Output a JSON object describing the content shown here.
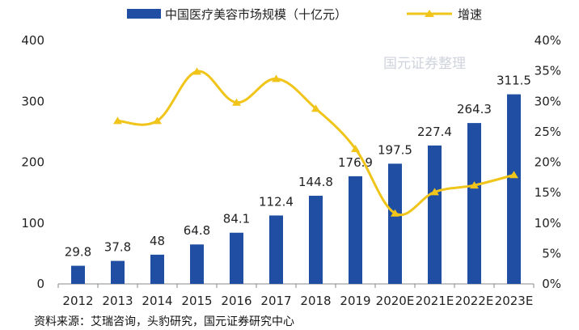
{
  "chart_data": {
    "type": "bar",
    "categories": [
      "2012",
      "2013",
      "2014",
      "2015",
      "2016",
      "2017",
      "2018",
      "2019",
      "2020E",
      "2021E",
      "2022E",
      "2023E"
    ],
    "series": [
      {
        "name": "中国医疗美容市场规模（十亿元）",
        "type": "bar",
        "axis": "left",
        "color": "#1f4ea3",
        "values": [
          29.8,
          37.8,
          48,
          64.8,
          84.1,
          112.4,
          144.8,
          176.9,
          197.5,
          227.4,
          264.3,
          311.5
        ],
        "labels": [
          "29.8",
          "37.8",
          "48",
          "64.8",
          "84.1",
          "112.4",
          "144.8",
          "176.9",
          "197.5",
          "227.4",
          "264.3",
          "311.5"
        ]
      },
      {
        "name": "增速",
        "type": "line",
        "axis": "right",
        "color": "#f0c419",
        "values": [
          null,
          26.8,
          26.8,
          34.9,
          29.8,
          33.7,
          28.8,
          22.2,
          11.6,
          15.1,
          16.2,
          17.9
        ]
      }
    ],
    "ylim_left": [
      0,
      400
    ],
    "yticks_left": [
      "0",
      "100",
      "200",
      "300",
      "400"
    ],
    "ylim_right": [
      0,
      40
    ],
    "yticks_right": [
      "0%",
      "5%",
      "10%",
      "15%",
      "20%",
      "25%",
      "30%",
      "35%",
      "40%"
    ],
    "legend_position": "top",
    "grid": false
  },
  "watermark": "国元证券整理",
  "source": "资料来源：艾瑞咨询，头豹研究，国元证券研究中心"
}
